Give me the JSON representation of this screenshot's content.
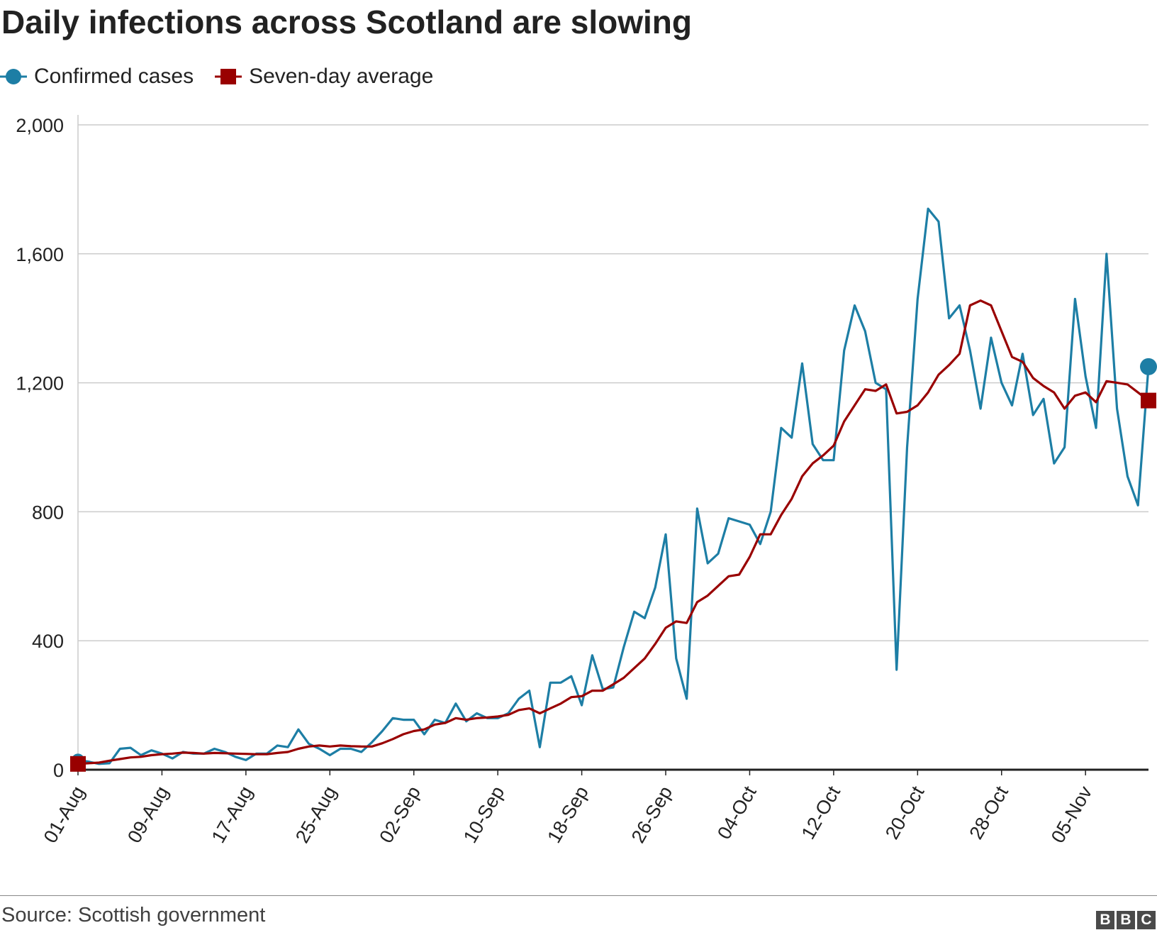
{
  "header": {
    "title": "Daily infections across Scotland are slowing"
  },
  "legend": {
    "items": [
      {
        "label": "Confirmed cases",
        "color": "#1d7ea5",
        "marker": "circle"
      },
      {
        "label": "Seven-day average",
        "color": "#990000",
        "marker": "square"
      }
    ]
  },
  "footer": {
    "source": "Source: Scottish government",
    "logo_letters": [
      "B",
      "B",
      "C"
    ]
  },
  "chart_data": {
    "type": "line",
    "title": "Daily infections across Scotland are slowing",
    "xlabel": "",
    "ylabel": "",
    "ylim": [
      0,
      2000
    ],
    "yticks": [
      "0",
      "400",
      "800",
      "1,200",
      "1,600",
      "2,000"
    ],
    "ytick_values": [
      0,
      400,
      800,
      1200,
      1600,
      2000
    ],
    "xticks": [
      "01-Aug",
      "09-Aug",
      "17-Aug",
      "25-Aug",
      "02-Sep",
      "10-Sep",
      "18-Sep",
      "26-Sep",
      "04-Oct",
      "12-Oct",
      "20-Oct",
      "28-Oct",
      "05-Nov"
    ],
    "x_start": "01-Aug",
    "x_end": "10-Nov",
    "grid": true,
    "legend_position": "top-left",
    "series": [
      {
        "name": "Confirmed cases",
        "color": "#1d7ea5",
        "values": [
          30,
          25,
          18,
          20,
          65,
          68,
          45,
          60,
          50,
          35,
          55,
          50,
          50,
          65,
          55,
          40,
          30,
          50,
          50,
          75,
          70,
          125,
          80,
          65,
          45,
          65,
          65,
          55,
          85,
          120,
          160,
          155,
          155,
          110,
          155,
          145,
          205,
          150,
          175,
          160,
          160,
          175,
          220,
          245,
          70,
          270,
          270,
          290,
          200,
          355,
          250,
          255,
          380,
          490,
          470,
          565,
          730,
          345,
          220,
          810,
          640,
          670,
          780,
          770,
          760,
          700,
          800,
          1060,
          1030,
          1260,
          1010,
          960,
          960,
          1300,
          1440,
          1360,
          1200,
          1180,
          310,
          1000,
          1460,
          1740,
          1700,
          1400,
          1440,
          1300,
          1120,
          1340,
          1200,
          1130,
          1290,
          1100,
          1150,
          950,
          1000,
          1460,
          1220,
          1060,
          1600,
          1120,
          910,
          820,
          1250
        ]
      },
      {
        "name": "Seven-day average",
        "color": "#990000",
        "values": [
          18,
          20,
          22,
          28,
          33,
          38,
          40,
          45,
          48,
          50,
          53,
          52,
          50,
          52,
          51,
          50,
          49,
          48,
          48,
          52,
          55,
          65,
          72,
          75,
          72,
          75,
          73,
          72,
          72,
          82,
          95,
          110,
          120,
          125,
          140,
          145,
          160,
          155,
          160,
          162,
          165,
          170,
          185,
          190,
          175,
          190,
          205,
          225,
          228,
          245,
          245,
          265,
          285,
          315,
          345,
          390,
          440,
          460,
          455,
          520,
          540,
          570,
          600,
          605,
          660,
          730,
          730,
          790,
          840,
          910,
          950,
          975,
          1005,
          1080,
          1130,
          1180,
          1175,
          1195,
          1105,
          1110,
          1130,
          1170,
          1225,
          1255,
          1290,
          1440,
          1455,
          1440,
          1360,
          1280,
          1265,
          1215,
          1190,
          1170,
          1120,
          1160,
          1170,
          1140,
          1205,
          1200,
          1195,
          1170,
          1145
        ]
      }
    ]
  }
}
